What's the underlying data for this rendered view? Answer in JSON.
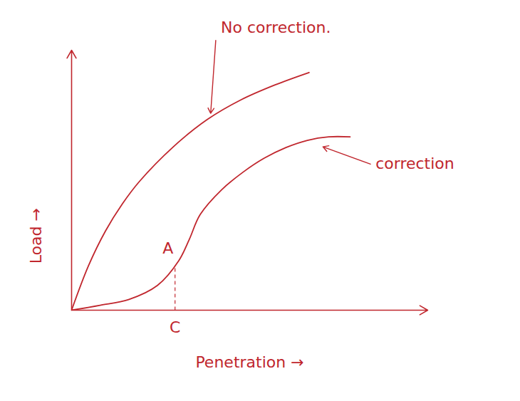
{
  "chart_data": {
    "type": "line",
    "x_label": "Penetration →",
    "y_label": "Load →",
    "xlim": [
      0,
      10.5
    ],
    "ylim": [
      0,
      10.5
    ],
    "tick_labels": false,
    "grid": false,
    "series": [
      {
        "name": "No correction.",
        "color": "#c0262d",
        "x": [
          0,
          0.5,
          1,
          1.5,
          2,
          3,
          4,
          5,
          6,
          7
        ],
        "values": [
          0,
          1.8,
          3.2,
          4.3,
          5.2,
          6.6,
          7.7,
          8.5,
          9.1,
          9.6
        ]
      },
      {
        "name": "correction",
        "color": "#c0262d",
        "x": [
          0,
          0.84,
          1.68,
          2.53,
          3.16,
          3.47,
          3.79,
          4.42,
          5.05,
          5.68,
          6.32,
          6.95,
          7.58,
          8.21
        ],
        "values": [
          0,
          0.2,
          0.43,
          1.0,
          2.0,
          2.86,
          3.86,
          4.86,
          5.57,
          6.14,
          6.57,
          6.86,
          7.0,
          7.0
        ]
      }
    ],
    "guide": {
      "x": 3.05,
      "y": 1.8,
      "label": "A",
      "foot_label": "C",
      "line_style": "dashed",
      "color": "#c0262d"
    }
  }
}
